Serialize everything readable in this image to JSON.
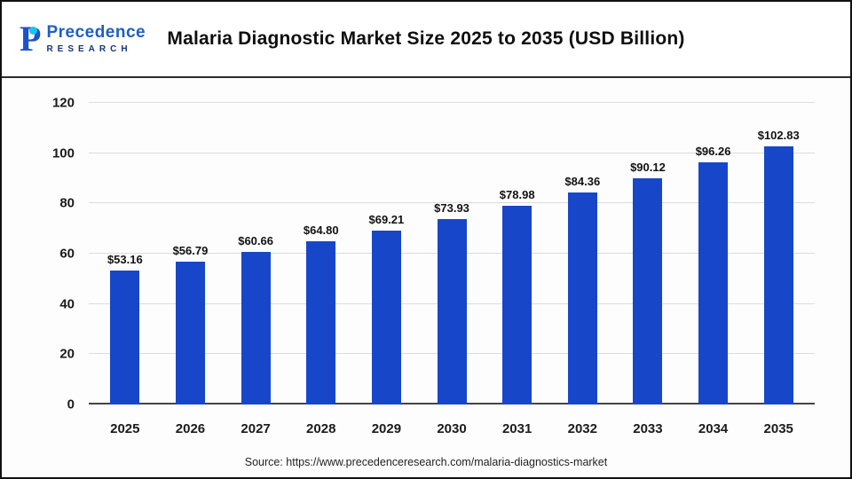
{
  "header": {
    "brand": {
      "name": "Precedence",
      "sub": "RESEARCH",
      "icon": "P"
    }
  },
  "footer": {
    "source": "Source: https://www.precedenceresearch.com/malaria-diagnostics-market"
  },
  "colors": {
    "bar": "#1747C8",
    "grid": "#dcdcdc",
    "axis": "#454545",
    "title_text": "#0e0e0e",
    "brand_blue": "#1e5ec4",
    "brand_navy": "#16357c"
  },
  "chart_data": {
    "type": "bar",
    "title": "Malaria Diagnostic Market Size 2025 to 2035 (USD Billion)",
    "categories": [
      "2025",
      "2026",
      "2027",
      "2028",
      "2029",
      "2030",
      "2031",
      "2032",
      "2033",
      "2034",
      "2035"
    ],
    "values": [
      53.16,
      56.79,
      60.66,
      64.8,
      69.21,
      73.93,
      78.98,
      84.36,
      90.12,
      96.26,
      102.83
    ],
    "value_labels": [
      "$53.16",
      "$56.79",
      "$60.66",
      "$64.80",
      "$69.21",
      "$73.93",
      "$78.98",
      "$84.36",
      "$90.12",
      "$96.26",
      "$102.83"
    ],
    "xlabel": "",
    "ylabel": "",
    "ylim": [
      0,
      120
    ],
    "yticks": [
      0,
      20,
      40,
      60,
      80,
      100,
      120
    ],
    "grid": true,
    "legend": false,
    "bar_color": "#1747C8"
  }
}
